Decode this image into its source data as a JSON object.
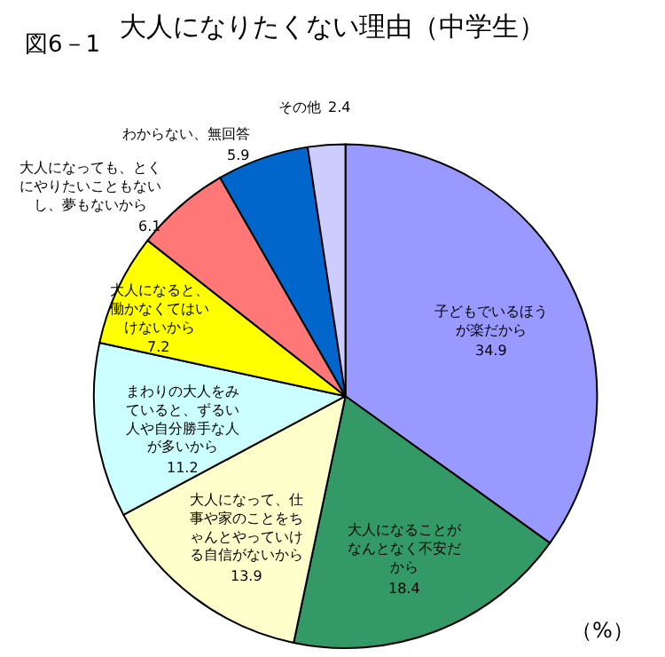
{
  "chart_data": {
    "type": "pie",
    "title": "大人になりたくない理由（中学生）",
    "categories": [
      "子どもでいるほうが楽だから",
      "大人になることがなんとなく不安だから",
      "大人になって、仕事や家のことをちゃんとやっていける自信がないから",
      "まわりの大人をみていると、ずるい人や自分勝手な人が多いから",
      "大人になると、働かなくてはいけないから",
      "大人になっても、とくにやりたいこともないし、夢もないから",
      "わからない、無回答",
      "その他"
    ],
    "values": [
      34.9,
      18.4,
      13.9,
      11.2,
      7.2,
      6.1,
      5.9,
      2.4
    ],
    "colors": [
      "#9999ff",
      "#339966",
      "#ffffcc",
      "#ccffff",
      "#ffff00",
      "#ff7777",
      "#0066cc",
      "#ccccff"
    ],
    "data_labels": true,
    "annotations": [
      "図6－1",
      "（%）"
    ]
  }
}
